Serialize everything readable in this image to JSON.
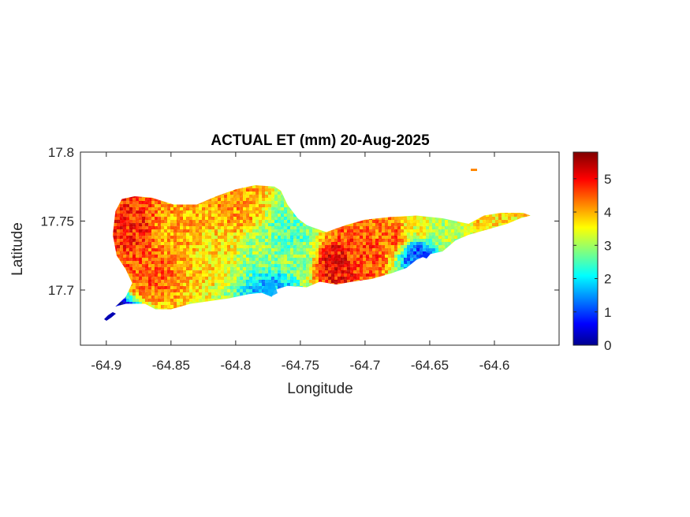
{
  "title": "ACTUAL ET (mm) 20-Aug-2025",
  "xlabel": "Longitude",
  "ylabel": "Latitude",
  "chart_data": {
    "type": "heatmap",
    "title": "ACTUAL ET (mm) 20-Aug-2025",
    "xlabel": "Longitude",
    "ylabel": "Latitude",
    "xlim": [
      -64.92,
      -64.55
    ],
    "ylim": [
      17.66,
      17.8
    ],
    "xticks": [
      -64.9,
      -64.85,
      -64.8,
      -64.75,
      -64.7,
      -64.65,
      -64.6
    ],
    "xtick_labels": [
      "-64.9",
      "-64.85",
      "-64.8",
      "-64.75",
      "-64.7",
      "-64.65",
      "-64.6"
    ],
    "yticks": [
      17.7,
      17.75,
      17.8
    ],
    "ytick_labels": [
      "17.7",
      "17.75",
      "17.8"
    ],
    "colorbar": {
      "colormap": "jet",
      "clim": [
        0,
        5.8
      ],
      "ticks": [
        0,
        1,
        2,
        3,
        4,
        5
      ],
      "tick_labels": [
        "0",
        "1",
        "2",
        "3",
        "4",
        "5"
      ]
    },
    "grid": false,
    "island_outline": [
      [
        -64.9,
        17.679
      ],
      [
        -64.893,
        17.688
      ],
      [
        -64.885,
        17.69
      ],
      [
        -64.87,
        17.69
      ],
      [
        -64.862,
        17.686
      ],
      [
        -64.85,
        17.686
      ],
      [
        -64.835,
        17.69
      ],
      [
        -64.82,
        17.692
      ],
      [
        -64.805,
        17.694
      ],
      [
        -64.79,
        17.697
      ],
      [
        -64.78,
        17.698
      ],
      [
        -64.772,
        17.695
      ],
      [
        -64.77,
        17.7
      ],
      [
        -64.76,
        17.703
      ],
      [
        -64.745,
        17.702
      ],
      [
        -64.735,
        17.706
      ],
      [
        -64.722,
        17.704
      ],
      [
        -64.71,
        17.706
      ],
      [
        -64.695,
        17.708
      ],
      [
        -64.68,
        17.712
      ],
      [
        -64.668,
        17.716
      ],
      [
        -64.66,
        17.722
      ],
      [
        -64.65,
        17.726
      ],
      [
        -64.64,
        17.728
      ],
      [
        -64.63,
        17.736
      ],
      [
        -64.62,
        17.74
      ],
      [
        -64.605,
        17.744
      ],
      [
        -64.59,
        17.748
      ],
      [
        -64.58,
        17.752
      ],
      [
        -64.572,
        17.754
      ],
      [
        -64.578,
        17.756
      ],
      [
        -64.595,
        17.756
      ],
      [
        -64.608,
        17.754
      ],
      [
        -64.62,
        17.748
      ],
      [
        -64.64,
        17.752
      ],
      [
        -64.66,
        17.754
      ],
      [
        -64.68,
        17.753
      ],
      [
        -64.7,
        17.751
      ],
      [
        -64.715,
        17.747
      ],
      [
        -64.73,
        17.742
      ],
      [
        -64.745,
        17.747
      ],
      [
        -64.752,
        17.752
      ],
      [
        -64.76,
        17.762
      ],
      [
        -64.765,
        17.772
      ],
      [
        -64.77,
        17.775
      ],
      [
        -64.785,
        17.776
      ],
      [
        -64.8,
        17.773
      ],
      [
        -64.815,
        17.768
      ],
      [
        -64.83,
        17.762
      ],
      [
        -64.848,
        17.762
      ],
      [
        -64.865,
        17.767
      ],
      [
        -64.878,
        17.768
      ],
      [
        -64.888,
        17.766
      ],
      [
        -64.893,
        17.757
      ],
      [
        -64.895,
        17.74
      ],
      [
        -64.892,
        17.725
      ],
      [
        -64.885,
        17.715
      ],
      [
        -64.88,
        17.705
      ],
      [
        -64.885,
        17.695
      ],
      [
        -64.893,
        17.688
      ]
    ],
    "et_hotspots": [
      {
        "lon": -64.885,
        "lat": 17.745,
        "value": 4.9
      },
      {
        "lon": -64.87,
        "lat": 17.715,
        "value": 4.6
      },
      {
        "lon": -64.845,
        "lat": 17.74,
        "value": 4.1
      },
      {
        "lon": -64.82,
        "lat": 17.73,
        "value": 3.8
      },
      {
        "lon": -64.8,
        "lat": 17.76,
        "value": 4.2
      },
      {
        "lon": -64.78,
        "lat": 17.73,
        "value": 3.0
      },
      {
        "lon": -64.76,
        "lat": 17.74,
        "value": 2.6
      },
      {
        "lon": -64.755,
        "lat": 17.725,
        "value": 2.9
      },
      {
        "lon": -64.725,
        "lat": 17.72,
        "value": 5.1
      },
      {
        "lon": -64.7,
        "lat": 17.728,
        "value": 4.7
      },
      {
        "lon": -64.68,
        "lat": 17.74,
        "value": 4.5
      },
      {
        "lon": -64.66,
        "lat": 17.745,
        "value": 3.5
      },
      {
        "lon": -64.64,
        "lat": 17.745,
        "value": 3.2
      },
      {
        "lon": -64.605,
        "lat": 17.75,
        "value": 3.8
      },
      {
        "lon": -64.773,
        "lat": 17.7,
        "value": 1.8
      },
      {
        "lon": -64.66,
        "lat": 17.727,
        "value": 1.2
      },
      {
        "lon": -64.9,
        "lat": 17.68,
        "value": 0.3
      }
    ]
  }
}
